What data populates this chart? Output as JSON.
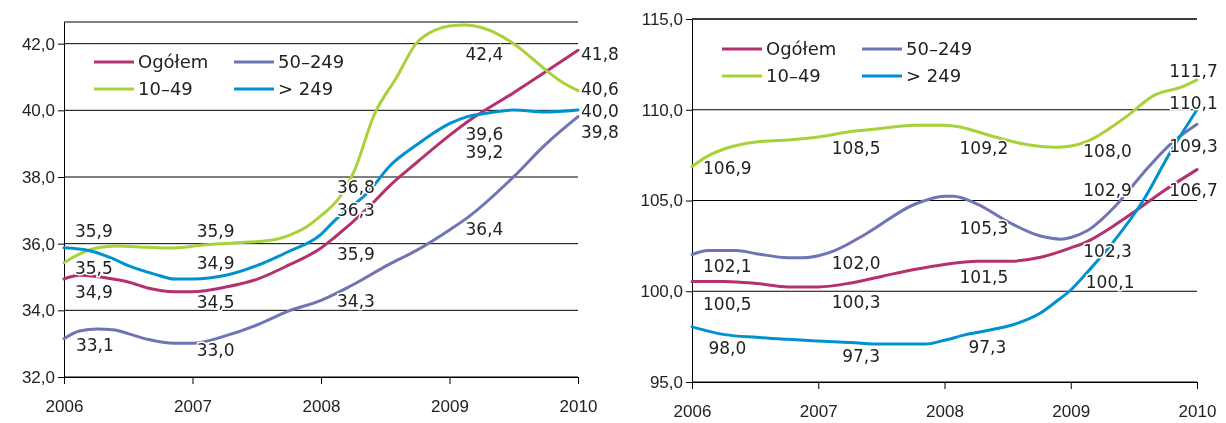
{
  "chart_data": [
    {
      "type": "line",
      "legend": "top left",
      "grid": "y",
      "line_style": "solid",
      "marker": "none",
      "xlim": [
        2006,
        2010
      ],
      "xticks": [
        2006,
        2007,
        2008,
        2009,
        2010
      ],
      "ylim": [
        32,
        42.65
      ],
      "yticks": [
        {
          "value": 32,
          "label": "32,0"
        },
        {
          "value": 34,
          "label": "34,0"
        },
        {
          "value": 36,
          "label": "36,0"
        },
        {
          "value": 38,
          "label": "38,0"
        },
        {
          "value": 40,
          "label": "40,0"
        },
        {
          "value": 42,
          "label": "42,0"
        }
      ],
      "series": [
        {
          "name": "Ogółem",
          "color": "#b5306e",
          "x": [
            2006,
            2006.12,
            2006.38,
            2006.5,
            2006.65,
            2006.86,
            2007,
            2007.26,
            2007.5,
            2007.74,
            2008,
            2008.1,
            2008.38,
            2008.53,
            2008.74,
            2009,
            2009.14,
            2009.5,
            2010
          ],
          "values": [
            34.94,
            35.05,
            34.94,
            34.85,
            34.67,
            34.56,
            34.56,
            34.7,
            34.93,
            35.34,
            35.87,
            36.17,
            37.13,
            37.72,
            38.42,
            39.25,
            39.66,
            40.53,
            41.8
          ]
        },
        {
          "name": "10–49",
          "color": "#a8d13a",
          "x": [
            2006,
            2006.11,
            2006.26,
            2006.41,
            2006.65,
            2006.86,
            2007.08,
            2007.32,
            2007.62,
            2007.77,
            2007.89,
            2008,
            2008.14,
            2008.26,
            2008.41,
            2008.59,
            2008.74,
            2008.89,
            2009,
            2009.12,
            2009.26,
            2009.5,
            2009.74,
            2009.86,
            2010
          ],
          "values": [
            35.43,
            35.67,
            35.88,
            35.93,
            35.89,
            35.87,
            35.96,
            36.02,
            36.11,
            36.28,
            36.51,
            36.84,
            37.37,
            38.19,
            39.83,
            41.0,
            42.0,
            42.41,
            42.53,
            42.56,
            42.47,
            42.0,
            41.24,
            40.89,
            40.59
          ]
        },
        {
          "name": "50–249",
          "color": "#6f74b5",
          "x": [
            2006,
            2006.12,
            2006.26,
            2006.38,
            2006.5,
            2006.65,
            2006.86,
            2007,
            2007.26,
            2007.5,
            2007.74,
            2008,
            2008.23,
            2008.53,
            2008.74,
            2009,
            2009.14,
            2009.5,
            2009.74,
            2010
          ],
          "values": [
            33.15,
            33.38,
            33.44,
            33.42,
            33.3,
            33.13,
            33.01,
            33.01,
            33.24,
            33.56,
            33.97,
            34.3,
            34.73,
            35.38,
            35.79,
            36.41,
            36.78,
            38.01,
            38.95,
            39.81
          ]
        },
        {
          "name": "> 249",
          "color": "#0092d0",
          "x": [
            2006,
            2006.2,
            2006.38,
            2006.5,
            2006.71,
            2006.86,
            2007,
            2007.26,
            2007.5,
            2007.74,
            2008,
            2008.1,
            2008.38,
            2008.53,
            2008.74,
            2009,
            2009.14,
            2009.29,
            2009.5,
            2009.74,
            2010
          ],
          "values": [
            35.88,
            35.79,
            35.55,
            35.34,
            35.08,
            34.94,
            34.94,
            35.05,
            35.34,
            35.75,
            36.28,
            36.67,
            37.6,
            38.31,
            38.95,
            39.6,
            39.81,
            39.91,
            40.01,
            39.95,
            40.01
          ]
        }
      ],
      "annotations": [
        "35,9",
        "35,5",
        "34,9",
        "33,1",
        "35,9",
        "34,9",
        "34,5",
        "33,0",
        "36,8",
        "36,3",
        "35,9",
        "34,3",
        "42,4",
        "39,6",
        "39,2",
        "36,4",
        "41,8",
        "40,6",
        "40,0",
        "39,8"
      ]
    },
    {
      "type": "line",
      "legend": "top left",
      "grid": "y",
      "line_style": "solid",
      "marker": "none",
      "xlim": [
        2006,
        2010
      ],
      "xticks": [
        2006,
        2007,
        2008,
        2009,
        2010
      ],
      "ylim": [
        95,
        115
      ],
      "yticks": [
        {
          "value": 95,
          "label": "95,0"
        },
        {
          "value": 100,
          "label": "100,0"
        },
        {
          "value": 105,
          "label": "105,0"
        },
        {
          "value": 110,
          "label": "110,0"
        },
        {
          "value": 115,
          "label": "115,0"
        }
      ],
      "series": [
        {
          "name": "Ogółem",
          "color": "#b5306e",
          "x": [
            2006,
            2006.26,
            2006.51,
            2006.76,
            2007,
            2007.26,
            2007.51,
            2007.76,
            2008,
            2008.26,
            2008.51,
            2008.76,
            2009,
            2009.13,
            2009.35,
            2009.51,
            2009.73,
            2010
          ],
          "values": [
            100.54,
            100.54,
            100.43,
            100.24,
            100.24,
            100.46,
            100.83,
            101.2,
            101.48,
            101.65,
            101.65,
            101.87,
            102.39,
            102.74,
            103.65,
            104.41,
            105.5,
            106.7
          ]
        },
        {
          "name": "10–49",
          "color": "#a8d13a",
          "x": [
            2006,
            2006.1,
            2006.26,
            2006.51,
            2006.76,
            2007,
            2007.26,
            2007.51,
            2007.76,
            2008,
            2008.13,
            2008.38,
            2008.63,
            2008.88,
            2009,
            2009.13,
            2009.42,
            2009.67,
            2009.88,
            2010
          ],
          "values": [
            106.87,
            107.35,
            107.85,
            108.22,
            108.33,
            108.5,
            108.8,
            108.98,
            109.15,
            109.15,
            109.04,
            108.54,
            108.11,
            107.93,
            108.0,
            108.26,
            109.52,
            110.83,
            111.26,
            111.65
          ]
        },
        {
          "name": "50–249",
          "color": "#6f74b5",
          "x": [
            2006,
            2006.13,
            2006.35,
            2006.51,
            2006.76,
            2006.88,
            2007,
            2007.13,
            2007.38,
            2007.76,
            2008,
            2008.07,
            2008.26,
            2008.51,
            2008.76,
            2008.92,
            2009,
            2009.13,
            2009.35,
            2009.57,
            2009.79,
            2010
          ],
          "values": [
            102.02,
            102.24,
            102.24,
            102.07,
            101.85,
            101.85,
            101.96,
            102.24,
            103.17,
            104.78,
            105.24,
            105.24,
            104.8,
            103.8,
            103.04,
            102.87,
            102.96,
            103.33,
            104.67,
            106.48,
            108.11,
            109.2
          ]
        },
        {
          "name": "> 249",
          "color": "#0092d0",
          "x": [
            2006,
            2006.26,
            2006.51,
            2006.76,
            2007,
            2007.26,
            2007.51,
            2007.85,
            2008,
            2008.17,
            2008.38,
            2008.57,
            2008.76,
            2008.88,
            2009,
            2009.13,
            2009.35,
            2009.57,
            2009.79,
            2010
          ],
          "values": [
            98.04,
            97.61,
            97.46,
            97.35,
            97.26,
            97.17,
            97.09,
            97.09,
            97.3,
            97.61,
            97.89,
            98.22,
            98.8,
            99.41,
            100.07,
            101.04,
            102.83,
            104.96,
            107.67,
            110.0
          ]
        }
      ],
      "annotations": [
        "106,9",
        "102,1",
        "100,5",
        "98,0",
        "108,5",
        "102,0",
        "100,3",
        "97,3",
        "109,2",
        "105,3",
        "101,5",
        "97,3",
        "108,0",
        "102,9",
        "102,3",
        "100,1",
        "111,7",
        "110,1",
        "109,3",
        "106,7"
      ]
    }
  ]
}
